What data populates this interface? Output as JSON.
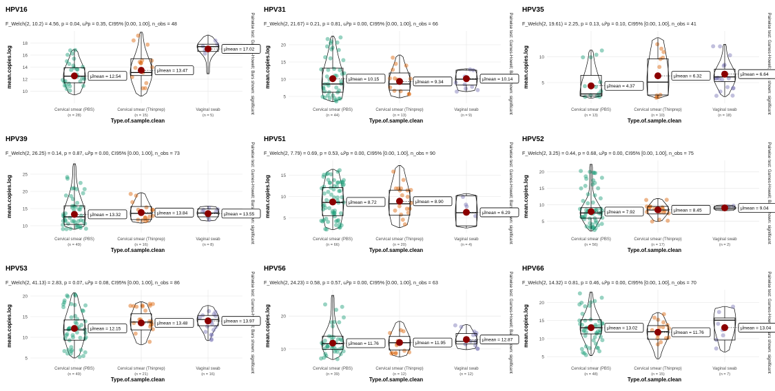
{
  "chart_data": [
    {
      "type": "violin",
      "title": "HPV16",
      "subtitle": "F_Welch(2, 10.2) = 4.56, p = 0.04, ω̂²p = 0.35, CI95% [0.00, 1.00], n_obs = 48",
      "xlabel": "Type.of.sample.clean",
      "ylabel": "mean.copies.log",
      "ylim": [
        8,
        20
      ],
      "yticks": [
        10,
        12,
        14,
        16,
        18
      ],
      "side_note": "Pairwise test: Games-Howell; Bars shown: significant",
      "categories": [
        {
          "name": "Cervical smear (PBS)",
          "n_label": "(n = 28)",
          "mean": 12.54,
          "mean_label": "μ̂mean = 12.54",
          "q1": 11.4,
          "median": 12.5,
          "q3": 13.9,
          "min": 9.4,
          "max": 16.9
        },
        {
          "name": "Cervical smear (Thinprep)",
          "n_label": "(n = 15)",
          "mean": 13.47,
          "mean_label": "μ̂mean = 13.47",
          "q1": 12.6,
          "median": 13.1,
          "q3": 15.4,
          "min": 9.2,
          "max": 19.8
        },
        {
          "name": "Vaginal swab",
          "n_label": "(n = 5)",
          "mean": 17.02,
          "mean_label": "μ̂mean = 17.02",
          "q1": 16.6,
          "median": 17.4,
          "q3": 17.8,
          "min": 12.9,
          "max": 19.3
        }
      ]
    },
    {
      "type": "violin",
      "title": "HPV31",
      "subtitle": "F_Welch(2, 21.67) = 0.21, p = 0.81, ω̂²p = 0.00, CI95% [0.00, 1.00], n_obs = 66",
      "xlabel": "Type.of.sample.clean",
      "ylabel": "mean.copies.log",
      "ylim": [
        3,
        24
      ],
      "yticks": [
        5,
        10,
        15,
        20
      ],
      "side_note": "Pairwise test: Games-Howell; Bars shown: significant",
      "categories": [
        {
          "name": "Cervical smear (PBS)",
          "n_label": "(n = 44)",
          "mean": 10.15,
          "mean_label": "μ̂mean = 10.15",
          "q1": 6.2,
          "median": 8.6,
          "q3": 13.2,
          "min": 3.5,
          "max": 22.5
        },
        {
          "name": "Cervical smear (Thinprep)",
          "n_label": "(n = 13)",
          "mean": 9.34,
          "mean_label": "μ̂mean = 9.34",
          "q1": 6.8,
          "median": 8.6,
          "q3": 11.8,
          "min": 4.6,
          "max": 17.0
        },
        {
          "name": "Vaginal swab",
          "n_label": "(n = 9)",
          "mean": 10.14,
          "mean_label": "μ̂mean = 10.14",
          "q1": 8.3,
          "median": 10.0,
          "q3": 12.6,
          "min": 6.4,
          "max": 13.0
        }
      ]
    },
    {
      "type": "violin",
      "title": "HPV35",
      "subtitle": "F_Welch(2, 19.61) = 2.25, p = 0.13, ω̂²p = 0.10, CI95% [0.00, 1.00], n_obs = 41",
      "xlabel": "Type.of.sample.clean",
      "ylabel": "mean.copies.log",
      "ylim": [
        1,
        15
      ],
      "yticks": [
        5,
        10
      ],
      "side_note": "Pairwise test: Games-Howell; Bars shown: significant",
      "categories": [
        {
          "name": "Cervical smear (PBS)",
          "n_label": "(n = 13)",
          "mean": 4.37,
          "mean_label": "μ̂mean = 4.37",
          "q1": 2.4,
          "median": 2.8,
          "q3": 6.4,
          "min": 2.0,
          "max": 11.3
        },
        {
          "name": "Cervical smear (Thinprep)",
          "n_label": "(n = 10)",
          "mean": 6.32,
          "mean_label": "μ̂mean = 6.32",
          "q1": 2.6,
          "median": 5.1,
          "q3": 9.6,
          "min": 2.0,
          "max": 13.7
        },
        {
          "name": "Vaginal swab",
          "n_label": "(n = 18)",
          "mean": 6.64,
          "mean_label": "μ̂mean = 6.64",
          "q1": 5.2,
          "median": 6.1,
          "q3": 7.6,
          "min": 2.3,
          "max": 12.4
        }
      ]
    },
    {
      "type": "violin",
      "title": "HPV39",
      "subtitle": "F_Welch(2, 26.25) = 0.14, p = 0.87, ω̂²p = 0.00, CI95% [0.00, 1.00], n_obs = 73",
      "xlabel": "Type.of.sample.clean",
      "ylabel": "mean.copies.log",
      "ylim": [
        8,
        29
      ],
      "yticks": [
        10,
        15,
        20,
        25
      ],
      "side_note": "Pairwise test: Games-Howell; Bars shown: significant",
      "categories": [
        {
          "name": "Cervical smear (PBS)",
          "n_label": "(n = 49)",
          "mean": 13.32,
          "mean_label": "μ̂mean = 13.32",
          "q1": 10.4,
          "median": 12.6,
          "q3": 15.8,
          "min": 9.0,
          "max": 28.0
        },
        {
          "name": "Cervical smear (Thinprep)",
          "n_label": "(n = 16)",
          "mean": 13.84,
          "mean_label": "μ̂mean = 13.84",
          "q1": 11.8,
          "median": 13.6,
          "q3": 15.6,
          "min": 10.8,
          "max": 19.6
        },
        {
          "name": "Vaginal swab",
          "n_label": "(n = 8)",
          "mean": 13.55,
          "mean_label": "μ̂mean = 13.55",
          "q1": 12.6,
          "median": 13.7,
          "q3": 14.9,
          "min": 11.4,
          "max": 15.7
        }
      ]
    },
    {
      "type": "violin",
      "title": "HPV51",
      "subtitle": "F_Welch(2, 7.79) = 0.69, p = 0.53, ω̂²p = 0.00, CI95% [0.00, 1.00], n_obs = 90",
      "xlabel": "Type.of.sample.clean",
      "ylabel": "mean.copies.log",
      "ylim": [
        1.5,
        18.5
      ],
      "yticks": [
        5,
        10,
        15
      ],
      "side_note": "Pairwise test: Games-Howell; Bars shown: significant",
      "categories": [
        {
          "name": "Cervical smear (PBS)",
          "n_label": "(n = 66)",
          "mean": 8.72,
          "mean_label": "μ̂mean = 8.72",
          "q1": 5.5,
          "median": 8.6,
          "q3": 12.1,
          "min": 2.2,
          "max": 16.4
        },
        {
          "name": "Cervical smear (Thinprep)",
          "n_label": "(n = 20)",
          "mean": 8.9,
          "mean_label": "μ̂mean = 8.90",
          "q1": 5.6,
          "median": 8.3,
          "q3": 11.5,
          "min": 2.7,
          "max": 17.3
        },
        {
          "name": "Vaginal swab",
          "n_label": "(n = 4)",
          "mean": 6.29,
          "mean_label": "μ̂mean = 6.29",
          "q1": 3.1,
          "median": 6.2,
          "q3": 10.2,
          "min": 2.6,
          "max": 10.7
        }
      ]
    },
    {
      "type": "violin",
      "title": "HPV52",
      "subtitle": "F_Welch(2, 3.25) = 0.44, p = 0.68, ω̂²p = 0.00, CI95% [0.00, 1.00], n_obs = 75",
      "xlabel": "Type.of.sample.clean",
      "ylabel": "mean.copies.log",
      "ylim": [
        1.5,
        23.5
      ],
      "yticks": [
        5,
        10,
        15,
        20
      ],
      "side_note": "Pairwise test: Games-Howell; Bars shown: significant",
      "categories": [
        {
          "name": "Cervical smear (PBS)",
          "n_label": "(n = 56)",
          "mean": 7.92,
          "mean_label": "μ̂mean = 7.92",
          "q1": 5.9,
          "median": 7.5,
          "q3": 9.1,
          "min": 2.0,
          "max": 22.3
        },
        {
          "name": "Cervical smear (Thinprep)",
          "n_label": "(n = 17)",
          "mean": 8.45,
          "mean_label": "μ̂mean = 8.45",
          "q1": 7.2,
          "median": 8.4,
          "q3": 9.5,
          "min": 4.9,
          "max": 11.9
        },
        {
          "name": "Vaginal swab",
          "n_label": "(n = 2)",
          "mean": 9.04,
          "mean_label": "μ̂mean = 9.04",
          "q1": 8.6,
          "median": 9.0,
          "q3": 9.6,
          "min": 8.2,
          "max": 9.9
        }
      ]
    },
    {
      "type": "violin",
      "title": "HPV53",
      "subtitle": "F_Welch(2, 41.13) = 2.83, p = 0.07, ω̂²p = 0.08, CI95% [0.00, 1.00], n_obs = 86",
      "xlabel": "Type.of.sample.clean",
      "ylabel": "mean.copies.log",
      "ylim": [
        4,
        21.5
      ],
      "yticks": [
        5,
        10,
        15,
        20
      ],
      "side_note": "Pairwise test: Games-Howell; Bars shown: significant",
      "categories": [
        {
          "name": "Cervical smear (PBS)",
          "n_label": "(n = 49)",
          "mean": 12.15,
          "mean_label": "μ̂mean = 12.15",
          "q1": 9.3,
          "median": 11.8,
          "q3": 14.2,
          "min": 5.0,
          "max": 20.8
        },
        {
          "name": "Cervical smear (Thinprep)",
          "n_label": "(n = 21)",
          "mean": 13.48,
          "mean_label": "μ̂mean = 13.48",
          "q1": 11.8,
          "median": 13.7,
          "q3": 15.7,
          "min": 8.2,
          "max": 18.6
        },
        {
          "name": "Vaginal swab",
          "n_label": "(n = 16)",
          "mean": 13.97,
          "mean_label": "μ̂mean = 13.97",
          "q1": 12.8,
          "median": 14.3,
          "q3": 15.3,
          "min": 9.2,
          "max": 17.7
        }
      ]
    },
    {
      "type": "violin",
      "title": "HPV56",
      "subtitle": "F_Welch(2, 24.23) = 0.58, p = 0.57, ω̂²p = 0.00, CI95% [0.00, 1.00], n_obs = 63",
      "xlabel": "Type.of.sample.clean",
      "ylabel": "mean.copies.log",
      "ylim": [
        6,
        28
      ],
      "yticks": [
        10,
        20
      ],
      "side_note": "Pairwise test: Games-Howell; Bars shown: significant",
      "categories": [
        {
          "name": "Cervical smear (PBS)",
          "n_label": "(n = 39)",
          "mean": 11.76,
          "mean_label": "μ̂mean = 11.76",
          "q1": 9.9,
          "median": 11.6,
          "q3": 13.9,
          "min": 6.8,
          "max": 26.3
        },
        {
          "name": "Cervical smear (Thinprep)",
          "n_label": "(n = 12)",
          "mean": 11.95,
          "mean_label": "μ̂mean = 11.95",
          "q1": 9.7,
          "median": 11.9,
          "q3": 13.8,
          "min": 7.6,
          "max": 18.4
        },
        {
          "name": "Vaginal swab",
          "n_label": "(n = 12)",
          "mean": 12.87,
          "mean_label": "μ̂mean = 12.87",
          "q1": 11.5,
          "median": 12.3,
          "q3": 14.7,
          "min": 9.8,
          "max": 17.4
        }
      ]
    },
    {
      "type": "violin",
      "title": "HPV66",
      "subtitle": "F_Welch(2, 14.32) = 0.81, p = 0.46, ω̂²p = 0.00, CI95% [0.00, 1.00], n_obs = 70",
      "xlabel": "Type.of.sample.clean",
      "ylabel": "mean.copies.log",
      "ylim": [
        3.5,
        23.5
      ],
      "yticks": [
        5,
        10,
        15,
        20
      ],
      "side_note": "Pairwise test: Games-Howell; Bars shown: significant",
      "categories": [
        {
          "name": "Cervical smear (PBS)",
          "n_label": "(n = 48)",
          "mean": 13.02,
          "mean_label": "μ̂mean = 13.02",
          "q1": 11.3,
          "median": 13.0,
          "q3": 15.2,
          "min": 5.3,
          "max": 22.9
        },
        {
          "name": "Cervical smear (Thinprep)",
          "n_label": "(n = 15)",
          "mean": 11.76,
          "mean_label": "μ̂mean = 11.76",
          "q1": 9.8,
          "median": 11.9,
          "q3": 13.6,
          "min": 4.4,
          "max": 17.2
        },
        {
          "name": "Vaginal swab",
          "n_label": "(n = 7)",
          "mean": 13.04,
          "mean_label": "μ̂mean = 13.04",
          "q1": 9.6,
          "median": 15.1,
          "q3": 15.7,
          "min": 6.3,
          "max": 18.9
        }
      ]
    }
  ],
  "colors": {
    "group_points": [
      "#1b9e77",
      "#d95f02",
      "#7570b3"
    ],
    "mean_point": "#8b0000",
    "grid": "#ebebeb",
    "outline": "#000000"
  }
}
